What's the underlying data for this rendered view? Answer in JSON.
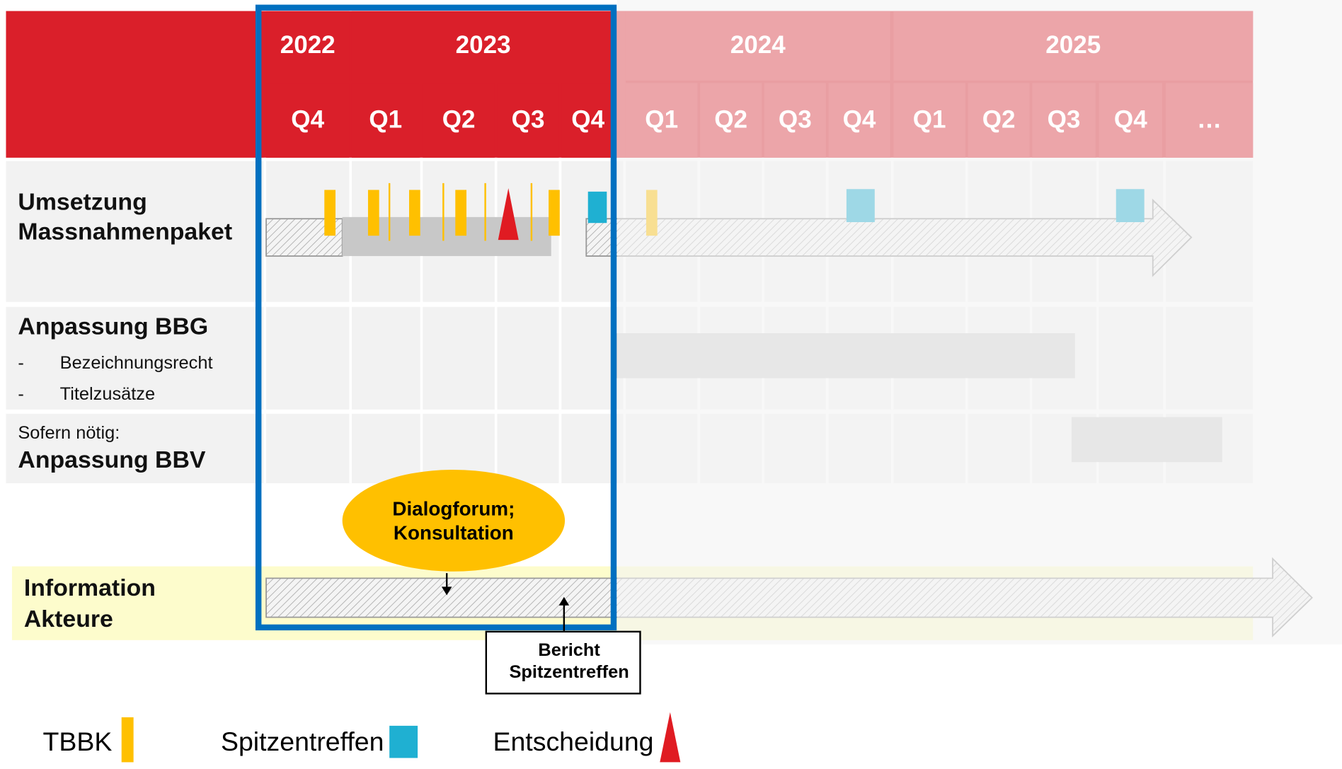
{
  "header": {
    "years": [
      "2022",
      "2023",
      "2024",
      "2025"
    ],
    "quarters": [
      "Q4",
      "Q1",
      "Q2",
      "Q3",
      "Q4",
      "Q1",
      "Q2",
      "Q3",
      "Q4",
      "Q1",
      "Q2",
      "Q3",
      "Q4",
      "…"
    ]
  },
  "rows": [
    {
      "title": [
        "Umsetzung",
        "Massnahmenpaket"
      ]
    },
    {
      "title": "Anpassung BBG",
      "items": [
        "Bezeichnungsrecht",
        "Titelzusätze"
      ],
      "bullet": "-"
    },
    {
      "note": "Sofern nötig:",
      "title": "Anpassung BBV"
    },
    {
      "title": [
        "Information",
        "Akteure"
      ]
    }
  ],
  "callouts": {
    "ellipse": [
      "Dialogforum;",
      "Konsultation"
    ],
    "box": [
      "Bericht",
      "Spitzentreffen"
    ]
  },
  "legend": [
    "TBBK",
    "Spitzentreffen",
    "Entscheidung"
  ]
}
